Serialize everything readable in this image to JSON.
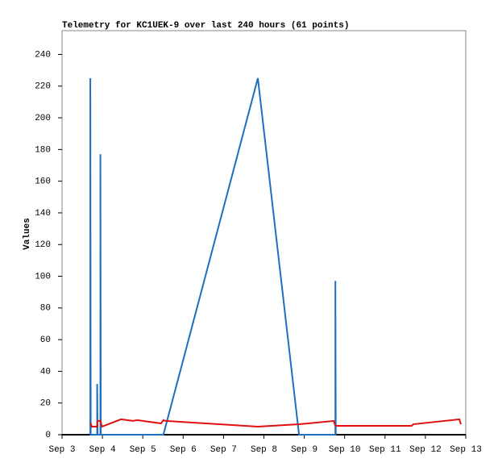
{
  "chart_data": {
    "type": "line",
    "title": "Telemetry for KC1UEK-9 over last 240 hours (61 points)",
    "y_label": "Values",
    "xlim": [
      3,
      13
    ],
    "xticks": [
      {
        "value": 3,
        "label": "Sep 3"
      },
      {
        "value": 4,
        "label": "Sep 4"
      },
      {
        "value": 5,
        "label": "Sep 5"
      },
      {
        "value": 6,
        "label": "Sep 6"
      },
      {
        "value": 7,
        "label": "Sep 7"
      },
      {
        "value": 8,
        "label": "Sep 8"
      },
      {
        "value": 9,
        "label": "Sep 9"
      },
      {
        "value": 10,
        "label": "Sep 10"
      },
      {
        "value": 11,
        "label": "Sep 11"
      },
      {
        "value": 12,
        "label": "Sep 12"
      },
      {
        "value": 13,
        "label": "Sep 13"
      }
    ],
    "ylim": [
      0,
      255
    ],
    "yticks": [
      0,
      20,
      40,
      60,
      80,
      100,
      120,
      140,
      160,
      180,
      200,
      220,
      240
    ],
    "series": [
      {
        "color": "#1f6fbf",
        "x": [
          3.7,
          3.7,
          3.71,
          3.87,
          3.87,
          3.88,
          3.95,
          3.95,
          3.96,
          5.51,
          7.85,
          8.87,
          9.77,
          9.77,
          9.78
        ],
        "values": [
          0,
          225,
          0,
          0,
          32,
          0,
          0,
          177,
          0,
          0,
          225,
          0,
          0,
          97,
          0
        ]
      },
      {
        "color": "#e01010",
        "x": [
          3.7,
          3.74,
          3.87,
          3.88,
          3.95,
          3.99,
          4.46,
          4.76,
          4.86,
          5.45,
          5.51,
          5.57,
          7.85,
          8.87,
          9.73,
          9.77,
          11.66,
          11.7,
          12.84,
          12.88
        ],
        "values": [
          7.6,
          5.1,
          5.1,
          8.7,
          8.7,
          5.1,
          9.7,
          8.7,
          9.2,
          7.1,
          9.2,
          8.7,
          5.1,
          6.6,
          8.7,
          5.6,
          5.6,
          6.6,
          9.7,
          6.6
        ]
      }
    ]
  }
}
